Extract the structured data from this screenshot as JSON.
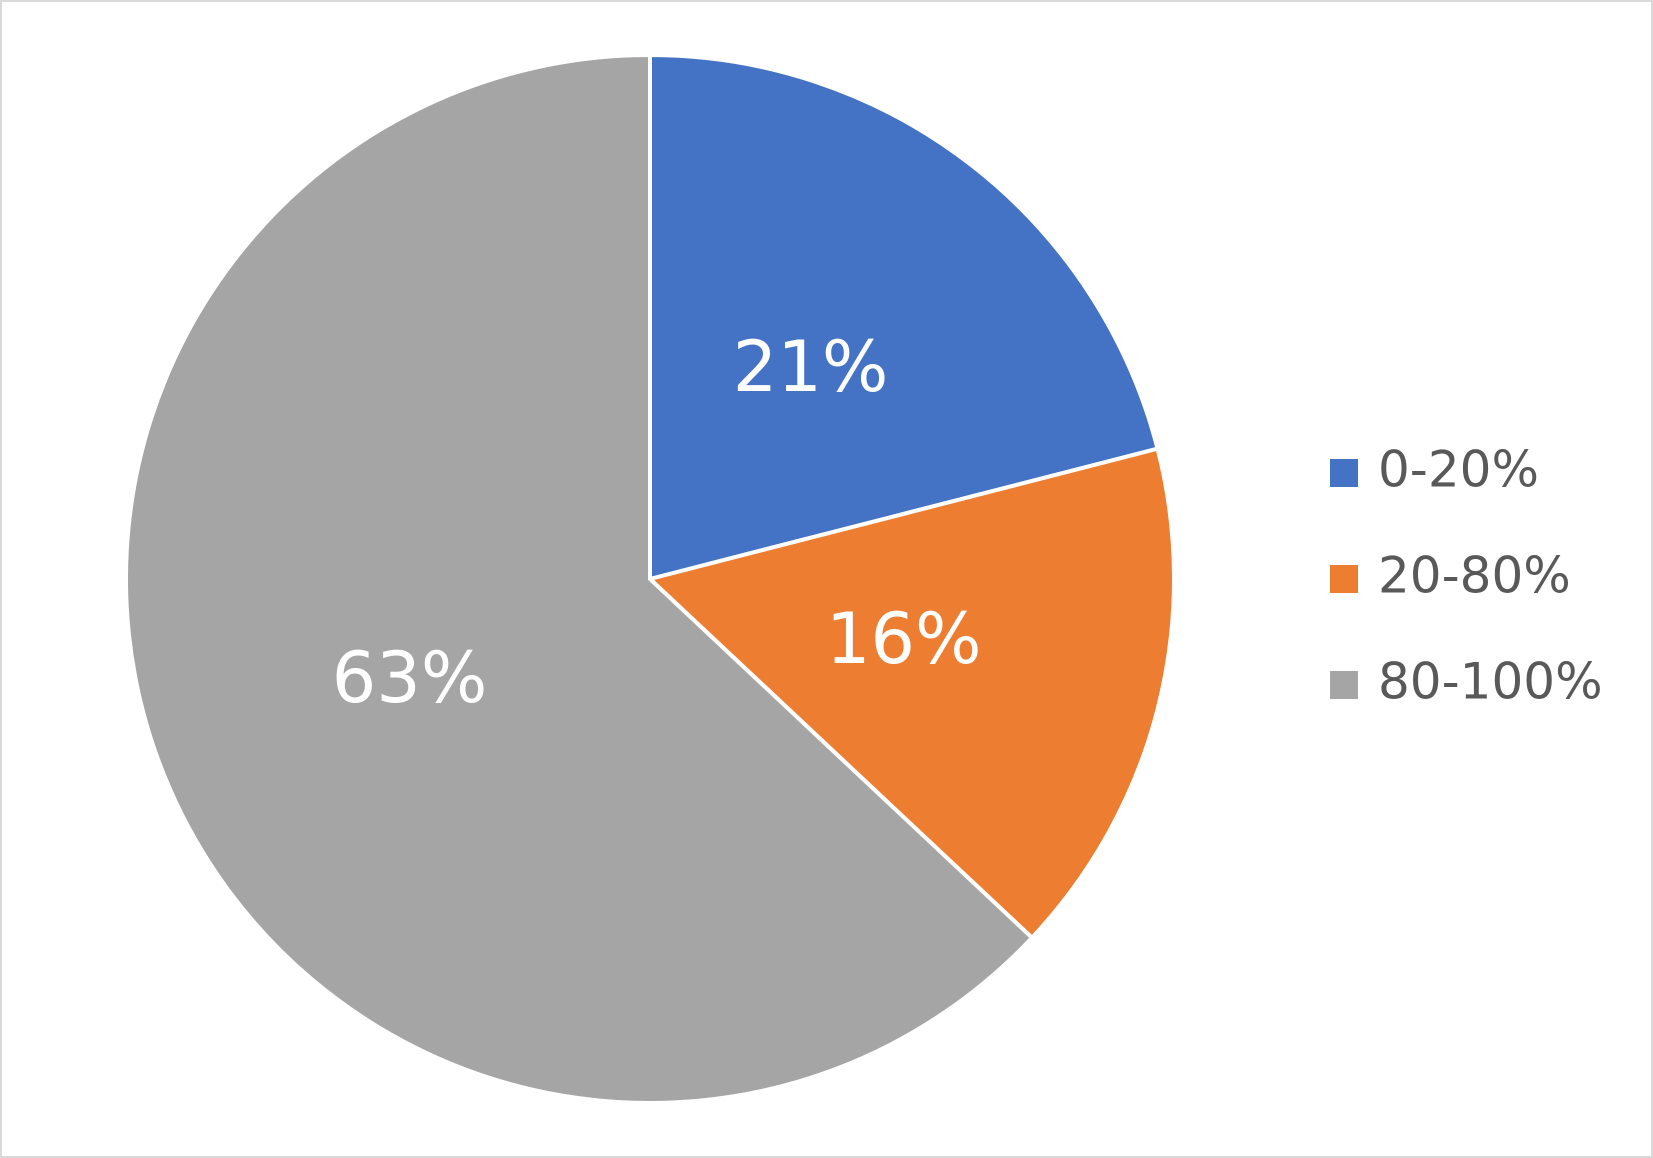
{
  "chart_data": {
    "type": "pie",
    "categories": [
      "0-20%",
      "20-80%",
      "80-100%"
    ],
    "values": [
      21,
      16,
      63
    ],
    "value_labels": [
      "21%",
      "16%",
      "63%"
    ],
    "colors": [
      "#4472c4",
      "#ed7d31",
      "#a5a5a5"
    ],
    "legend": "right"
  }
}
